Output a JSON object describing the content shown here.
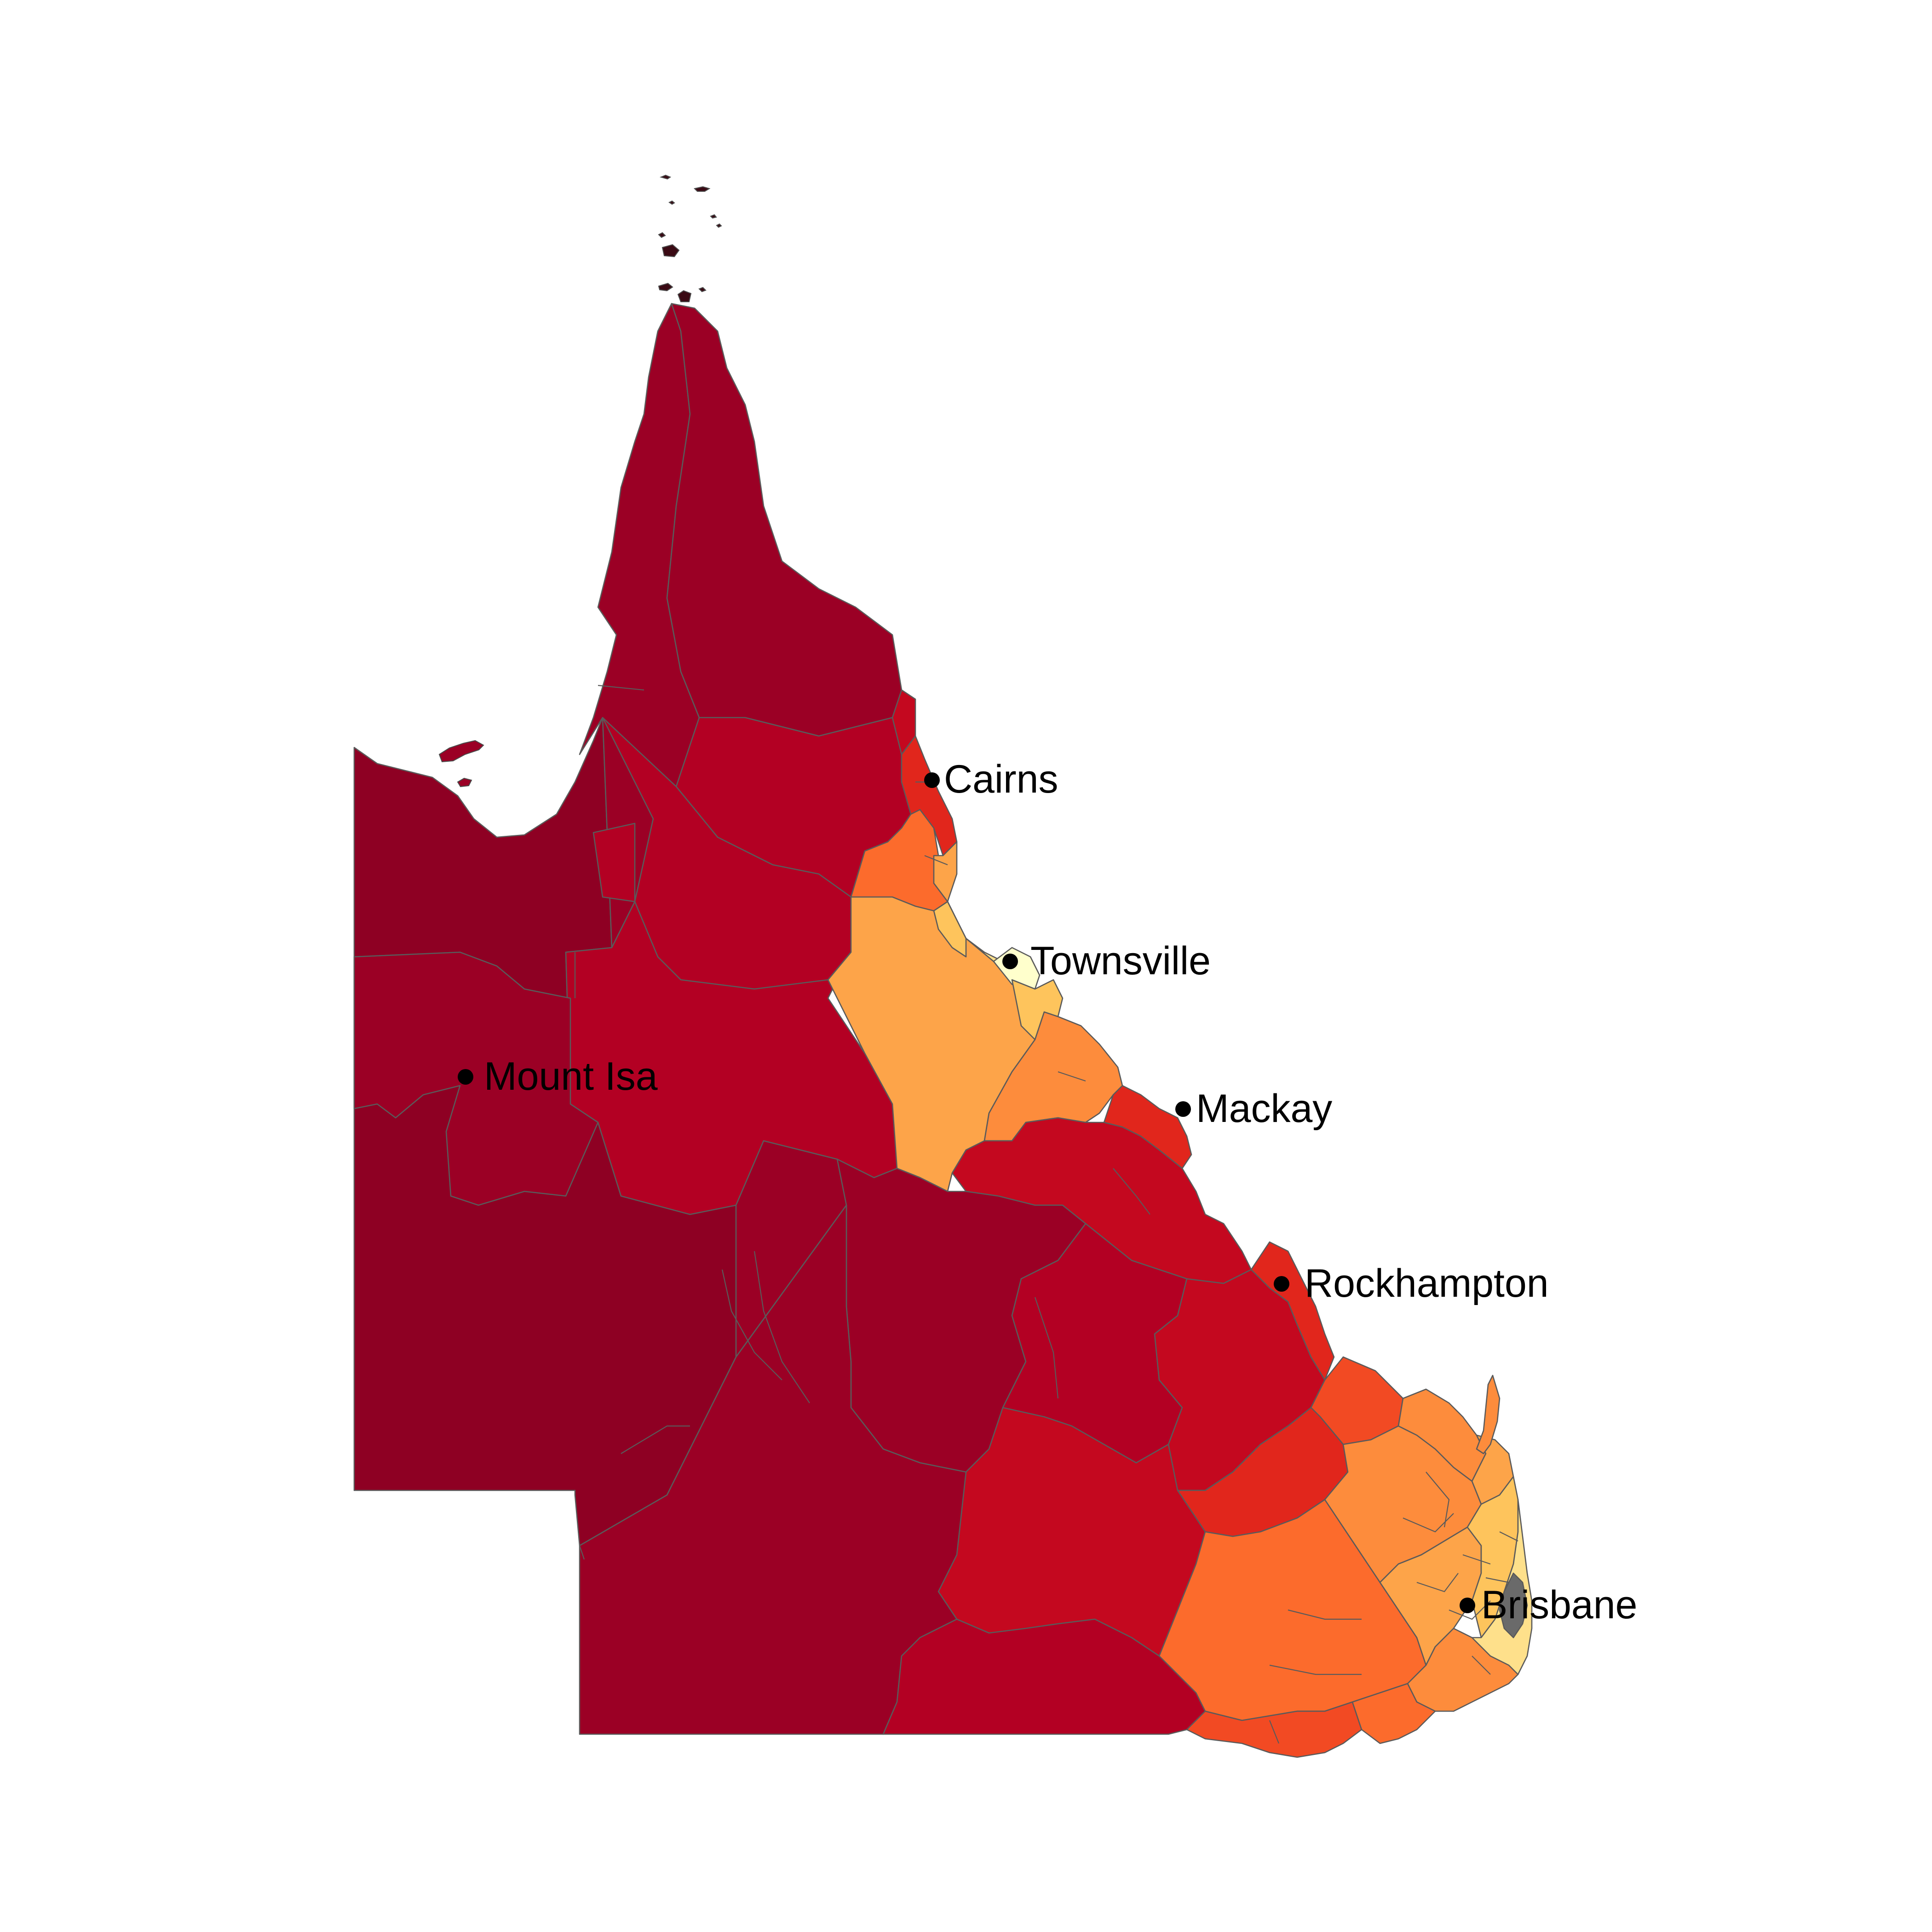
{
  "map": {
    "region": "Queensland, Australia",
    "type": "choropleth",
    "colors": {
      "c1": "#8e0023",
      "c2": "#9b0025",
      "c3": "#b30023",
      "c4": "#c4081f",
      "c5": "#e1261c",
      "c6": "#f24a23",
      "c7": "#fc6b2c",
      "c8": "#fd8c3c",
      "c9": "#fda449",
      "c10": "#fec45c",
      "c11": "#fee08b",
      "c12": "#ffffcc",
      "border": "#5a5a5a"
    }
  },
  "cities": [
    {
      "name": "Cairns",
      "key": "cairns"
    },
    {
      "name": "Townsville",
      "key": "townsville"
    },
    {
      "name": "Mount Isa",
      "key": "mount-isa"
    },
    {
      "name": "Mackay",
      "key": "mackay"
    },
    {
      "name": "Rockhampton",
      "key": "rockhampton"
    },
    {
      "name": "Brisbane",
      "key": "brisbane"
    }
  ]
}
